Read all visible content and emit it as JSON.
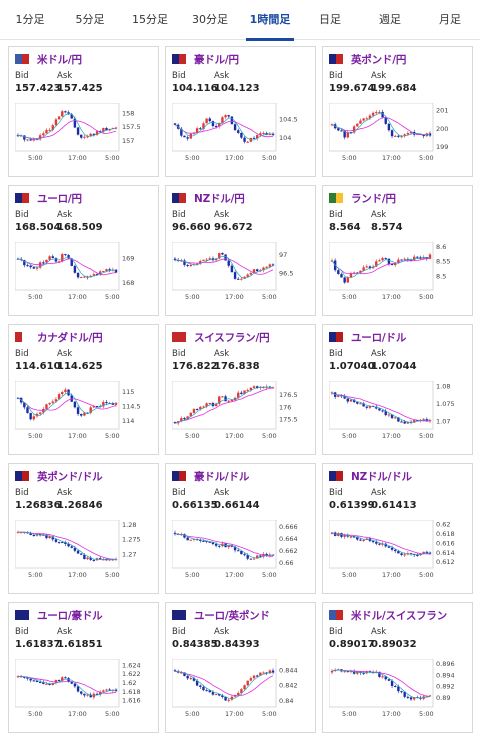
{
  "tabs": [
    "1分足",
    "5分足",
    "15分足",
    "30分足",
    "1時間足",
    "日足",
    "週足",
    "月足"
  ],
  "active_tab": 4,
  "labels": {
    "bid": "Bid",
    "ask": "Ask"
  },
  "colors": {
    "up": "#e53935",
    "down": "#1a2ca8",
    "ma": "#e02ee0",
    "accent": "#1a4aa0",
    "pair_text": "#7b1fa2"
  },
  "cards": [
    {
      "pair": "米ドル/円",
      "flag": [
        "#3b5ba9",
        "#c62828"
      ],
      "bid": "157.423",
      "ask": "157.425",
      "chart": {
        "yticks": [
          "158",
          "157.5",
          "157"
        ],
        "xticks": [
          "5:00",
          "17:00",
          "5:00"
        ],
        "trend": [
          157.2,
          157.1,
          157.0,
          157.1,
          157.3,
          157.4,
          157.8,
          158.1,
          157.9,
          157.3,
          157.1,
          157.2,
          157.3,
          157.4,
          157.4,
          157.5
        ],
        "range": [
          156.7,
          158.3
        ]
      }
    },
    {
      "pair": "豪ドル/円",
      "flag": [
        "#1a237e",
        "#c62828"
      ],
      "bid": "104.116",
      "ask": "104.123",
      "chart": {
        "yticks": [
          "104.5",
          "104"
        ],
        "xticks": [
          "5:00",
          "17:00",
          "5:00"
        ],
        "trend": [
          104.4,
          104.1,
          104.0,
          104.2,
          104.3,
          104.6,
          104.3,
          104.5,
          104.7,
          104.3,
          104.0,
          103.9,
          104.0,
          104.1,
          104.1,
          104.1
        ],
        "range": [
          103.7,
          104.9
        ]
      }
    },
    {
      "pair": "英ポンド/円",
      "flag": [
        "#1a237e",
        "#c62828"
      ],
      "bid": "199.674",
      "ask": "199.684",
      "chart": {
        "yticks": [
          "201",
          "200",
          "199"
        ],
        "xticks": [
          "5:00",
          "17:00",
          "5:00"
        ],
        "trend": [
          200.2,
          200.0,
          199.6,
          199.9,
          200.3,
          200.5,
          200.8,
          201.0,
          200.4,
          199.7,
          199.5,
          199.6,
          199.8,
          199.7,
          199.7,
          199.7
        ],
        "range": [
          198.9,
          201.3
        ]
      }
    },
    {
      "pair": "ユーロ/円",
      "flag": [
        "#1a237e",
        "#c62828"
      ],
      "bid": "168.504",
      "ask": "168.509",
      "chart": {
        "yticks": [
          "169",
          "168"
        ],
        "xticks": [
          "5:00",
          "17:00",
          "5:00"
        ],
        "trend": [
          169.0,
          168.8,
          168.6,
          168.7,
          168.9,
          169.1,
          168.8,
          169.3,
          168.9,
          168.3,
          168.2,
          168.3,
          168.4,
          168.5,
          168.5,
          168.5
        ],
        "range": [
          167.8,
          169.6
        ]
      }
    },
    {
      "pair": "NZドル/円",
      "flag": [
        "#1a237e",
        "#c62828"
      ],
      "bid": "96.660",
      "ask": "96.672",
      "chart": {
        "yticks": [
          "97",
          "96.5"
        ],
        "xticks": [
          "5:00",
          "17:00",
          "5:00"
        ],
        "trend": [
          96.9,
          96.8,
          96.7,
          96.8,
          96.8,
          96.9,
          96.8,
          97.1,
          96.8,
          96.4,
          96.3,
          96.4,
          96.6,
          96.6,
          96.7,
          96.7
        ],
        "range": [
          96.1,
          97.3
        ]
      }
    },
    {
      "pair": "ランド/円",
      "flag": [
        "#2e7d32",
        "#fbc02d"
      ],
      "bid": "8.564",
      "ask": "8.574",
      "chart": {
        "yticks": [
          "8.6",
          "8.55",
          "8.5"
        ],
        "xticks": [
          "5:00",
          "17:00",
          "5:00"
        ],
        "trend": [
          8.55,
          8.5,
          8.48,
          8.52,
          8.51,
          8.54,
          8.53,
          8.55,
          8.56,
          8.54,
          8.55,
          8.56,
          8.56,
          8.57,
          8.56,
          8.57
        ],
        "range": [
          8.46,
          8.61
        ]
      }
    },
    {
      "pair": "カナダドル/円",
      "flag": [
        "#c62828",
        "#ffffff"
      ],
      "bid": "114.610",
      "ask": "114.625",
      "chart": {
        "yticks": [
          "115",
          "114.5",
          "114"
        ],
        "xticks": [
          "5:00",
          "17:00",
          "5:00"
        ],
        "trend": [
          114.8,
          114.4,
          114.1,
          114.2,
          114.5,
          114.6,
          114.8,
          115.1,
          114.8,
          114.3,
          114.2,
          114.4,
          114.5,
          114.6,
          114.6,
          114.6
        ],
        "range": [
          113.8,
          115.3
        ]
      }
    },
    {
      "pair": "スイスフラン/円",
      "flag": [
        "#c62828",
        "#c62828"
      ],
      "bid": "176.822",
      "ask": "176.838",
      "chart": {
        "yticks": [
          "176.5",
          "176",
          "175.5"
        ],
        "xticks": [
          "5:00",
          "17:00",
          "5:00"
        ],
        "trend": [
          175.4,
          175.5,
          175.6,
          175.9,
          176.0,
          176.2,
          176.0,
          176.6,
          176.2,
          176.4,
          176.6,
          176.7,
          176.8,
          176.8,
          176.9,
          176.8
        ],
        "range": [
          175.2,
          177.0
        ]
      }
    },
    {
      "pair": "ユーロ/ドル",
      "flag": [
        "#1a237e",
        "#b71c1c"
      ],
      "bid": "1.07040",
      "ask": "1.07044",
      "chart": {
        "yticks": [
          "1.08",
          "1.075",
          "1.07"
        ],
        "xticks": [
          "5:00",
          "17:00",
          "5:00"
        ],
        "trend": [
          1.078,
          1.077,
          1.0765,
          1.0758,
          1.0752,
          1.0745,
          1.074,
          1.0735,
          1.0725,
          1.0715,
          1.0706,
          1.07,
          1.0698,
          1.0702,
          1.0704,
          1.0704
        ],
        "range": [
          1.0685,
          1.081
        ]
      }
    },
    {
      "pair": "英ポンド/ドル",
      "flag": [
        "#1a237e",
        "#b71c1c"
      ],
      "bid": "1.26836",
      "ask": "1.26846",
      "chart": {
        "yticks": [
          "1.28",
          "1.275",
          "1.27"
        ],
        "xticks": [
          "5:00",
          "17:00",
          "5:00"
        ],
        "trend": [
          1.2775,
          1.277,
          1.2768,
          1.2765,
          1.276,
          1.2755,
          1.2745,
          1.2735,
          1.2725,
          1.271,
          1.269,
          1.268,
          1.2682,
          1.2684,
          1.2683,
          1.2684
        ],
        "range": [
          1.266,
          1.281
        ]
      }
    },
    {
      "pair": "豪ドル/ドル",
      "flag": [
        "#1a237e",
        "#b71c1c"
      ],
      "bid": "0.66135",
      "ask": "0.66144",
      "chart": {
        "yticks": [
          "0.666",
          "0.664",
          "0.662",
          "0.66"
        ],
        "xticks": [
          "5:00",
          "17:00",
          "5:00"
        ],
        "trend": [
          0.665,
          0.6645,
          0.664,
          0.6638,
          0.6636,
          0.6634,
          0.6632,
          0.663,
          0.6628,
          0.6624,
          0.6618,
          0.661,
          0.6608,
          0.6612,
          0.6614,
          0.6614
        ],
        "range": [
          0.6595,
          0.6668
        ]
      }
    },
    {
      "pair": "NZドル/ドル",
      "flag": [
        "#1a237e",
        "#b71c1c"
      ],
      "bid": "0.61399",
      "ask": "0.61413",
      "chart": {
        "yticks": [
          "0.62",
          "0.618",
          "0.616",
          "0.614",
          "0.612"
        ],
        "xticks": [
          "5:00",
          "17:00",
          "5:00"
        ],
        "trend": [
          0.618,
          0.6178,
          0.6175,
          0.6172,
          0.617,
          0.6168,
          0.6163,
          0.616,
          0.6156,
          0.615,
          0.6142,
          0.6136,
          0.6135,
          0.6138,
          0.614,
          0.614
        ],
        "range": [
          0.6112,
          0.6205
        ]
      }
    },
    {
      "pair": "ユーロ/豪ドル",
      "flag": [
        "#1a237e",
        "#1a237e"
      ],
      "bid": "1.61837",
      "ask": "1.61851",
      "chart": {
        "yticks": [
          "1.624",
          "1.622",
          "1.62",
          "1.618",
          "1.616"
        ],
        "xticks": [
          "5:00",
          "17:00",
          "5:00"
        ],
        "trend": [
          1.6215,
          1.621,
          1.6205,
          1.62,
          1.6195,
          1.62,
          1.6205,
          1.6215,
          1.62,
          1.6185,
          1.6175,
          1.617,
          1.6175,
          1.618,
          1.6183,
          1.6184
        ],
        "range": [
          1.615,
          1.625
        ]
      }
    },
    {
      "pair": "ユーロ/英ポンド",
      "flag": [
        "#1a237e",
        "#1a237e"
      ],
      "bid": "0.84385",
      "ask": "0.84393",
      "chart": {
        "yticks": [
          "0.844",
          "0.842",
          "0.84"
        ],
        "xticks": [
          "5:00",
          "17:00",
          "5:00"
        ],
        "trend": [
          0.844,
          0.8435,
          0.843,
          0.8425,
          0.8418,
          0.8412,
          0.841,
          0.8405,
          0.8402,
          0.8408,
          0.8415,
          0.8425,
          0.8432,
          0.8436,
          0.8438,
          0.8439
        ],
        "range": [
          0.8395,
          0.8452
        ]
      }
    },
    {
      "pair": "米ドル/スイスフラン",
      "flag": [
        "#3b5ba9",
        "#c62828"
      ],
      "bid": "0.89017",
      "ask": "0.89032",
      "chart": {
        "yticks": [
          "0.896",
          "0.894",
          "0.892",
          "0.89"
        ],
        "xticks": [
          "5:00",
          "17:00",
          "5:00"
        ],
        "trend": [
          0.8945,
          0.8948,
          0.895,
          0.8946,
          0.8943,
          0.8944,
          0.8947,
          0.8942,
          0.8935,
          0.8925,
          0.8915,
          0.8905,
          0.89,
          0.8901,
          0.8902,
          0.8902
        ],
        "range": [
          0.8888,
          0.8965
        ]
      }
    }
  ]
}
